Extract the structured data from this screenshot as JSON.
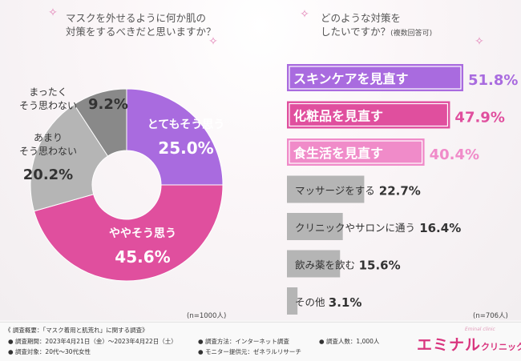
{
  "colors": {
    "purple": "#a96bdf",
    "pink": "#e04f9e",
    "light_pink": "#f08bc9",
    "gray": "#b5b5b5",
    "dark_gray": "#898989",
    "brand_pink": "#d9357e"
  },
  "left_title": {
    "line1": "マスクを外せるように何か肌の",
    "line2": "対策をするべきだと思いますか？"
  },
  "right_title": {
    "line1": "どのような対策を",
    "line2": "したいですか？",
    "sub": "(複数回答可)"
  },
  "left_n": "(n=1000人)",
  "right_n": "(n=706人)",
  "chart_data": [
    {
      "type": "pie",
      "variant": "donut",
      "title": "マスクを外せるように何か肌の対策をするべきだと思いますか？",
      "n_label": "(n=1000人)",
      "slices": [
        {
          "label": "とてもそう思う",
          "value": 25.0,
          "value_label": "25.0%",
          "color": "#a96bdf"
        },
        {
          "label": "ややそう思う",
          "value": 45.6,
          "value_label": "45.6%",
          "color": "#e04f9e"
        },
        {
          "label": "あまり\nそう思わない",
          "value": 20.2,
          "value_label": "20.2%",
          "color": "#b5b5b5"
        },
        {
          "label": "まったく\nそう思わない",
          "value": 9.2,
          "value_label": "9.2%",
          "color": "#898989"
        }
      ]
    },
    {
      "type": "bar",
      "orientation": "horizontal",
      "title": "どのような対策をしたいですか？(複数回答可)",
      "n_label": "(n=706人)",
      "categories": [
        "スキンケアを見直す",
        "化粧品を見直す",
        "食生活を見直す",
        "マッサージをする",
        "クリニックやサロンに通う",
        "飲み薬を飲む",
        "その他"
      ],
      "values": [
        51.8,
        47.9,
        40.4,
        22.7,
        16.4,
        15.6,
        3.1
      ],
      "value_labels": [
        "51.8%",
        "47.9%",
        "40.4%",
        "22.7%",
        "16.4%",
        "15.6%",
        "3.1%"
      ],
      "colors": [
        "#a96bdf",
        "#e04f9e",
        "#f08bc9",
        "#b5b5b5",
        "#b5b5b5",
        "#b5b5b5",
        "#b5b5b5"
      ],
      "xlim": [
        0,
        60
      ]
    }
  ],
  "footer": {
    "overview": "《 調査概要：「マスク着用と肌荒れ」に関する調査》",
    "period": "調査期間：2023年4月21日（金）〜2023年4月22日（土）",
    "method": "調査方法：インターネット調査",
    "count": "調査人数：1,000人",
    "target": "調査対象：20代〜30代女性",
    "provider": "モニター提供元：ゼネラルリサーチ"
  },
  "brand": {
    "main": "エミナル",
    "suffix": "クリニック",
    "sub": "Eminal clinic"
  }
}
